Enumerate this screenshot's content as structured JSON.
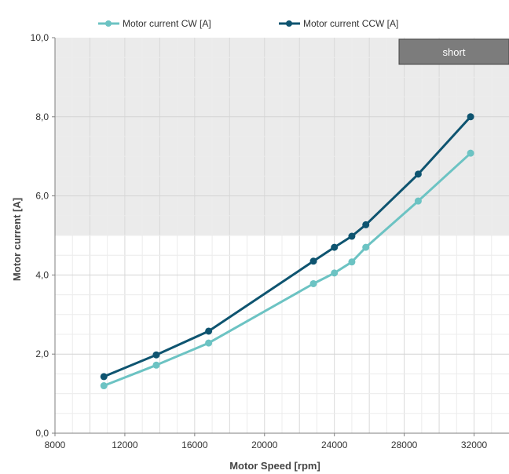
{
  "chart_data": {
    "type": "line",
    "title": "",
    "xlabel": "Motor Speed [rpm]",
    "ylabel": "Motor current [A]",
    "xlim": [
      8000,
      34000
    ],
    "ylim": [
      0,
      10
    ],
    "xticks": [
      8000,
      12000,
      16000,
      20000,
      24000,
      28000,
      32000
    ],
    "xtick_labels": [
      "8000",
      "12000",
      "16000",
      "20000",
      "24000",
      "28000",
      "32000"
    ],
    "yticks": [
      0,
      2,
      4,
      6,
      8,
      10
    ],
    "ytick_labels": [
      "0,0",
      "2,0",
      "4,0",
      "6,0",
      "8,0",
      "10,0"
    ],
    "grid": true,
    "legend_position": "top",
    "shaded_region": {
      "y_from": 5,
      "y_to": 10,
      "label": "short"
    },
    "series": [
      {
        "name": "Motor current CW [A]",
        "color": "#6cc3c3",
        "points": [
          {
            "x": 10800,
            "y": 1.2
          },
          {
            "x": 13800,
            "y": 1.72
          },
          {
            "x": 16800,
            "y": 2.28
          },
          {
            "x": 22800,
            "y": 3.78
          },
          {
            "x": 24000,
            "y": 4.05
          },
          {
            "x": 25000,
            "y": 4.33
          },
          {
            "x": 25800,
            "y": 4.7
          },
          {
            "x": 28800,
            "y": 5.87
          },
          {
            "x": 31800,
            "y": 7.08
          }
        ]
      },
      {
        "name": "Motor current CCW [A]",
        "color": "#0e5470",
        "points": [
          {
            "x": 10800,
            "y": 1.43
          },
          {
            "x": 13800,
            "y": 1.98
          },
          {
            "x": 16800,
            "y": 2.58
          },
          {
            "x": 22800,
            "y": 4.35
          },
          {
            "x": 24000,
            "y": 4.7
          },
          {
            "x": 25000,
            "y": 4.98
          },
          {
            "x": 25800,
            "y": 5.27
          },
          {
            "x": 28800,
            "y": 6.55
          },
          {
            "x": 31800,
            "y": 8.0
          }
        ]
      }
    ]
  }
}
